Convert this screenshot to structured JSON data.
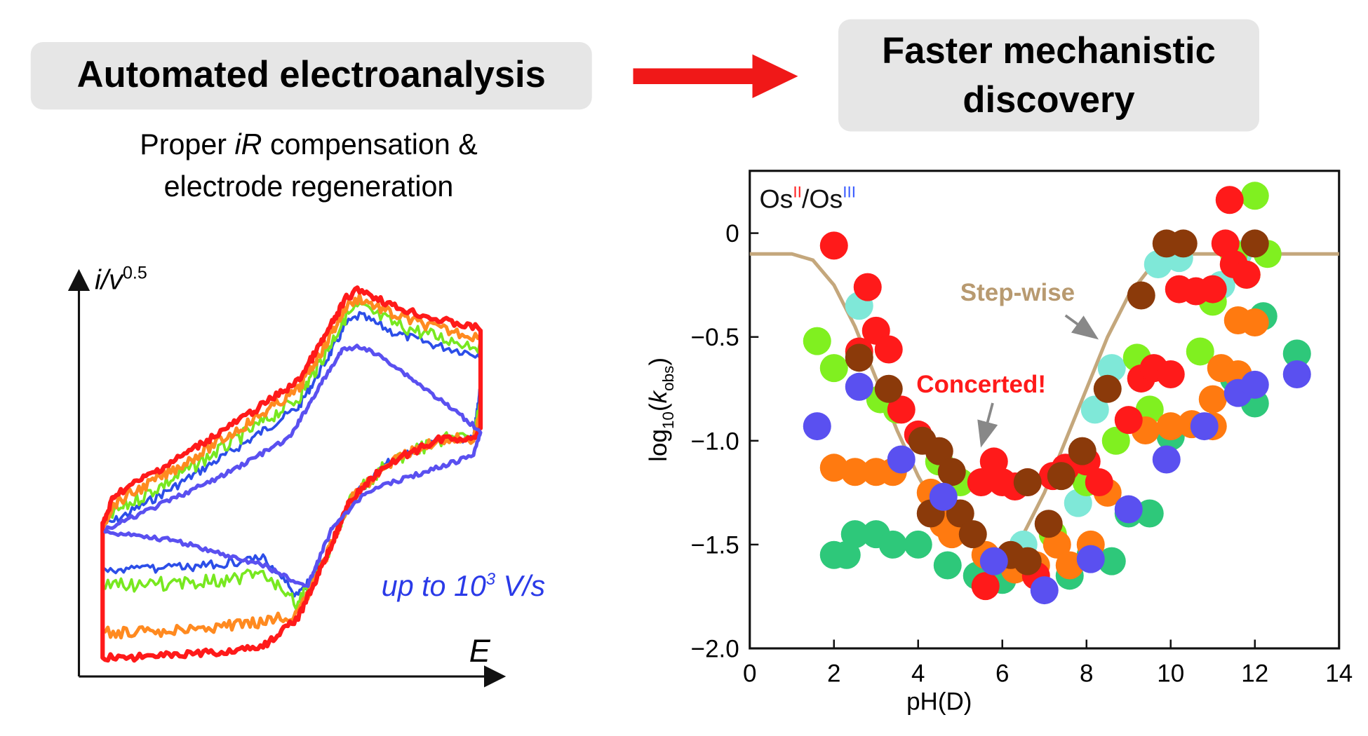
{
  "header": {
    "left_title": "Automated electroanalysis",
    "right_title_lines": [
      "Faster mechanistic",
      "discovery"
    ]
  },
  "subtitle": {
    "line1": [
      "Proper ",
      "iR",
      " compensation &"
    ],
    "line2": "electrode regeneration"
  },
  "cv_panel": {
    "y_label": [
      "i/v",
      "0.5"
    ],
    "x_label": "E",
    "annotation": [
      "up to 10",
      "3",
      " V/s"
    ]
  },
  "chart_data": {
    "type": "scatter",
    "xlabel": "pH(D)",
    "ylabel": [
      "log",
      "10",
      "(",
      "k",
      "obs",
      ")"
    ],
    "annotation_os": [
      "Os",
      "II",
      "/Os",
      "III"
    ],
    "annotation_os_colors": [
      "#111111",
      "#ff2020",
      "#111111",
      "#3a5cff"
    ],
    "stepwise_label": "Step-wise",
    "stepwise_color": "#b89a70",
    "concerted_label": "Concerted!",
    "concerted_color": "#ff1a1a",
    "xlim": [
      0,
      14
    ],
    "xticks": [
      0,
      2,
      4,
      6,
      8,
      10,
      12,
      14
    ],
    "ylim": [
      -2.0,
      0.3
    ],
    "yticks": [
      0,
      {
        "value": -0.5,
        "label": "−0.5"
      },
      {
        "value": -1.0,
        "label": "−1.0"
      },
      {
        "value": -1.5,
        "label": "−1.5"
      },
      {
        "value": -2.0,
        "label": "−2.0"
      }
    ],
    "line": {
      "color": "#c4a77c",
      "x": [
        0,
        1,
        1.5,
        2,
        2.5,
        3,
        3.5,
        4,
        4.5,
        5,
        5.5,
        6,
        6.5,
        7,
        7.5,
        8,
        8.5,
        9,
        9.5,
        10,
        10.5,
        11,
        12,
        13,
        14
      ],
      "values": [
        -0.1,
        -0.1,
        -0.13,
        -0.25,
        -0.45,
        -0.7,
        -0.95,
        -1.17,
        -1.35,
        -1.47,
        -1.53,
        -1.55,
        -1.45,
        -1.25,
        -1.0,
        -0.75,
        -0.5,
        -0.3,
        -0.17,
        -0.11,
        -0.1,
        -0.1,
        -0.1,
        -0.1,
        -0.1
      ]
    },
    "series": [
      {
        "color": "#7fe8d8",
        "x": [
          2.6,
          8.2,
          8.6,
          9.3,
          9.7,
          10.2,
          11.6,
          11.2,
          7.8,
          6.5
        ],
        "values": [
          -0.35,
          -0.85,
          -0.65,
          -0.7,
          -0.15,
          -0.12,
          -0.1,
          -0.25,
          -1.3,
          -1.5
        ]
      },
      {
        "color": "#2ec87a",
        "x": [
          2.0,
          2.3,
          2.5,
          3.0,
          3.4,
          4.0,
          4.7,
          5.4,
          6.0,
          6.6,
          7.6,
          8.1,
          8.6,
          9.0,
          9.5,
          10.0,
          11.5,
          12.0,
          12.2,
          13.0
        ],
        "values": [
          -1.55,
          -1.55,
          -1.45,
          -1.45,
          -1.5,
          -1.5,
          -1.6,
          -1.65,
          -1.67,
          -1.6,
          -1.65,
          -1.55,
          -1.58,
          -1.35,
          -1.35,
          -0.98,
          -0.7,
          -0.82,
          -0.4,
          -0.58
        ]
      },
      {
        "color": "#80f020",
        "x": [
          1.6,
          2.0,
          3.1,
          3.5,
          4.5,
          5.0,
          7.2,
          8.0,
          8.7,
          9.2,
          9.5,
          10.7,
          11.0,
          11.5,
          11.8,
          12.0,
          12.3
        ],
        "values": [
          -0.52,
          -0.65,
          -0.8,
          -0.85,
          -1.1,
          -1.2,
          -1.45,
          -1.2,
          -1.0,
          -0.6,
          -0.85,
          -0.57,
          -0.33,
          -0.1,
          -0.2,
          0.18,
          -0.1
        ]
      },
      {
        "color": "#ff7a10",
        "x": [
          2.0,
          2.5,
          3.0,
          3.4,
          4.3,
          4.6,
          4.8,
          5.6,
          6.3,
          6.8,
          7.3,
          7.6,
          8.1,
          8.5,
          9.4,
          10.0,
          10.5,
          11.0,
          11.0,
          11.2,
          11.6,
          11.6,
          12.0
        ],
        "values": [
          -1.13,
          -1.15,
          -1.15,
          -1.15,
          -1.25,
          -1.4,
          -1.45,
          -1.55,
          -1.62,
          -1.6,
          -1.5,
          -1.6,
          -1.5,
          -1.25,
          -0.95,
          -0.93,
          -0.92,
          -0.93,
          -0.8,
          -0.65,
          -0.68,
          -0.42,
          -0.43
        ]
      },
      {
        "color": "#ff1a1a",
        "x": [
          2.0,
          2.8,
          3.0,
          3.3,
          2.6,
          3.6,
          4.0,
          5.5,
          5.8,
          6.0,
          6.3,
          6.6,
          7.2,
          7.5,
          8.0,
          8.3,
          9.0,
          9.3,
          9.6,
          10.0,
          10.2,
          10.6,
          11.0,
          11.3,
          11.5,
          11.8,
          11.4,
          5.6,
          6.8
        ],
        "values": [
          -0.06,
          -0.26,
          -0.47,
          -0.56,
          -0.57,
          -0.85,
          -0.97,
          -1.2,
          -1.1,
          -1.2,
          -1.22,
          -1.2,
          -1.17,
          -1.13,
          -1.1,
          -1.2,
          -0.9,
          -0.7,
          -0.65,
          -0.68,
          -0.27,
          -0.28,
          -0.27,
          -0.05,
          -0.15,
          -0.2,
          0.16,
          -1.7,
          -1.65
        ]
      },
      {
        "color": "#8b3a0a",
        "x": [
          2.6,
          3.3,
          4.1,
          4.5,
          4.8,
          4.3,
          5.0,
          5.3,
          6.2,
          6.6,
          6.6,
          7.1,
          7.4,
          7.9,
          8.5,
          9.3,
          9.9,
          10.3,
          12.0
        ],
        "values": [
          -0.6,
          -0.75,
          -1.0,
          -1.05,
          -1.15,
          -1.35,
          -1.35,
          -1.45,
          -1.55,
          -1.58,
          -1.2,
          -1.4,
          -1.17,
          -1.05,
          -0.75,
          -0.3,
          -0.05,
          -0.05,
          -0.05
        ]
      },
      {
        "color": "#5a50f0",
        "x": [
          1.6,
          2.6,
          3.6,
          4.6,
          5.8,
          7.0,
          8.1,
          9.0,
          9.9,
          10.8,
          11.6,
          12.0,
          13.0
        ],
        "values": [
          -0.93,
          -0.74,
          -1.09,
          -1.27,
          -1.58,
          -1.72,
          -1.57,
          -1.33,
          -1.09,
          -0.93,
          -0.77,
          -0.73,
          -0.68
        ]
      }
    ]
  }
}
